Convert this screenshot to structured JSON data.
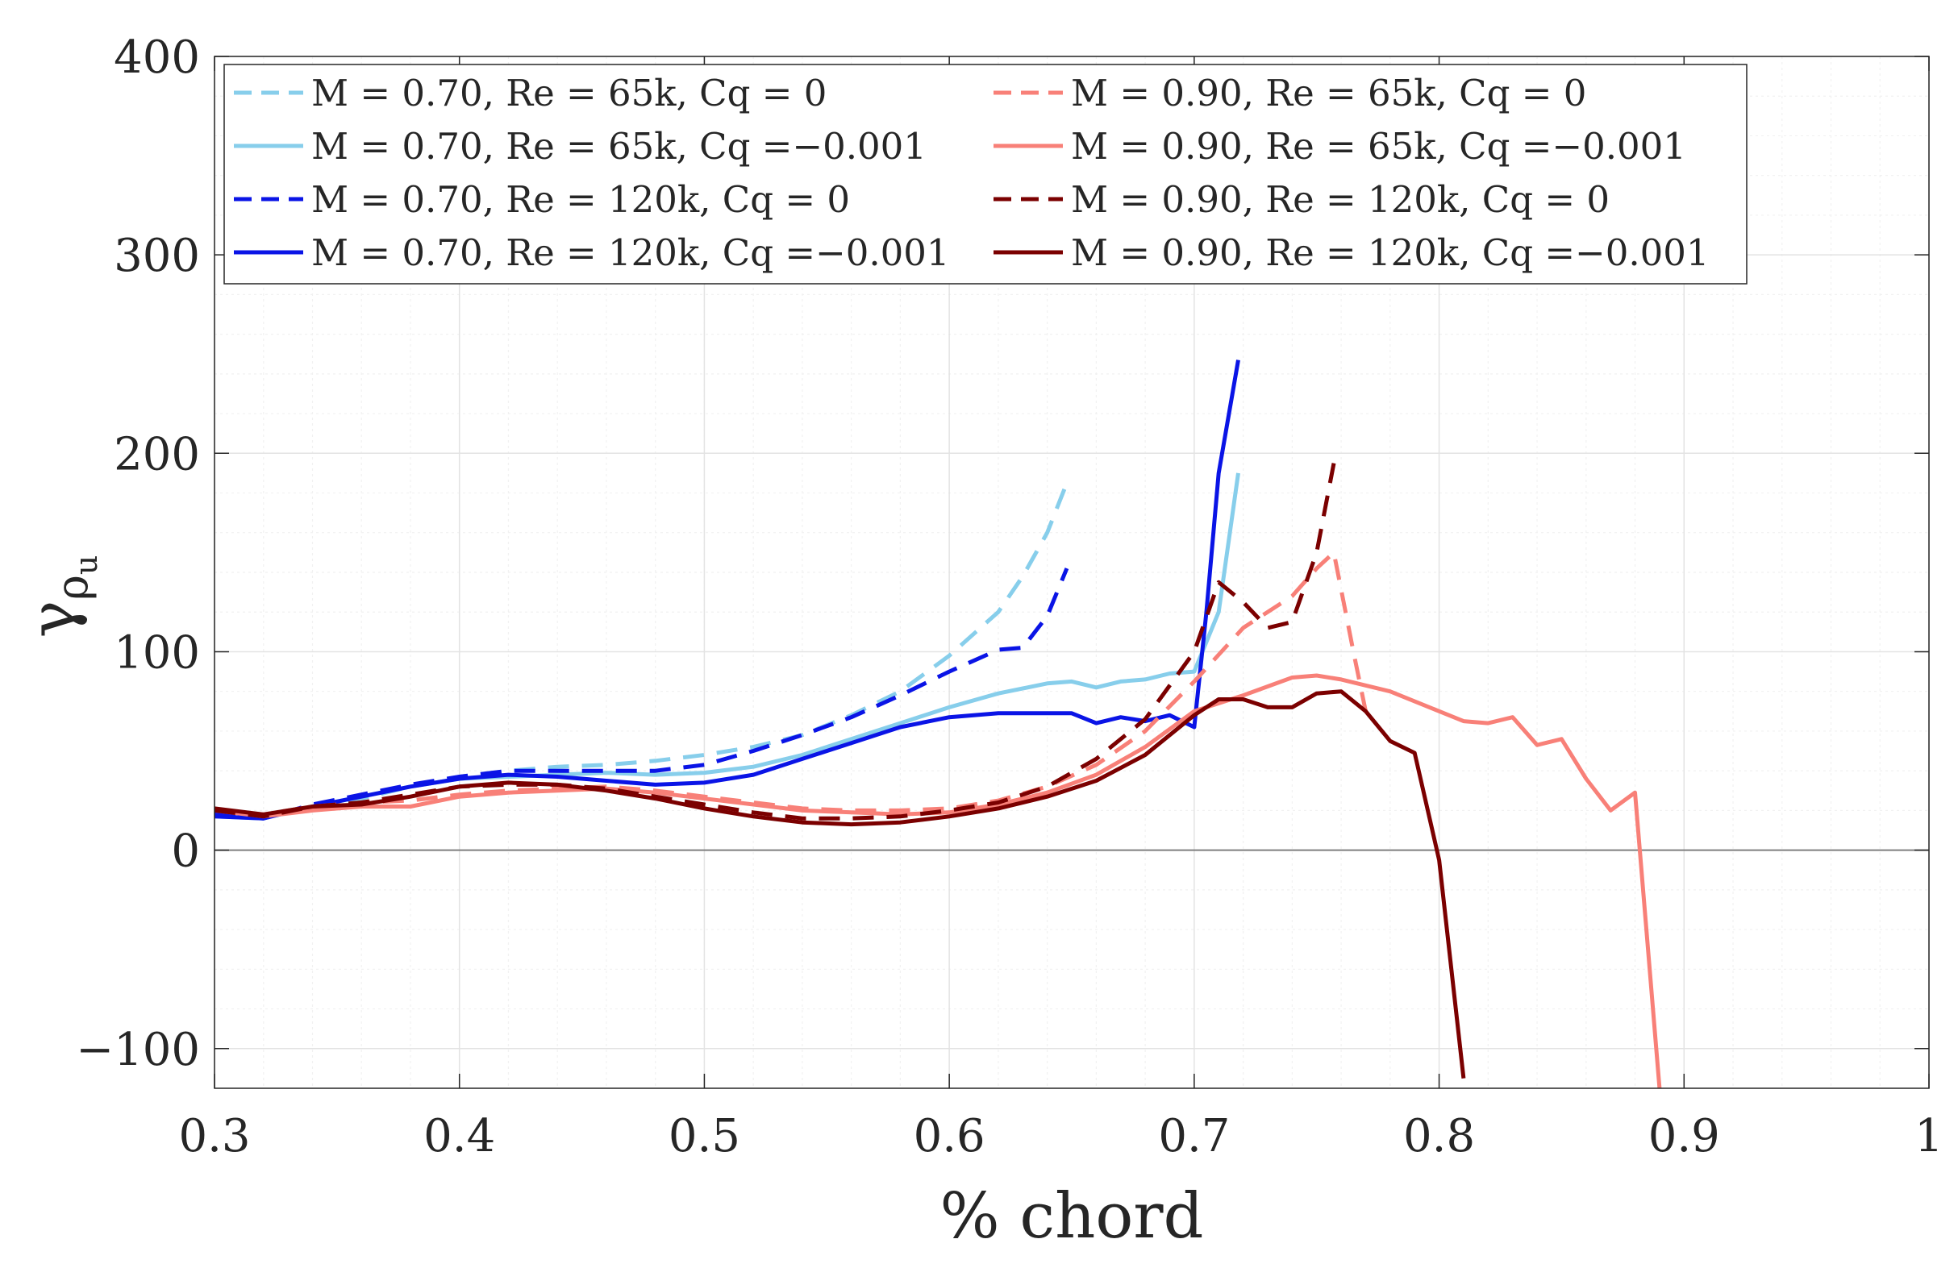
{
  "chart_data": {
    "type": "line",
    "title": "",
    "xlabel": "% chord",
    "ylabel_main": "γ",
    "ylabel_sub1": "ρ",
    "ylabel_sub2": "u",
    "xlim": [
      0.3,
      1.0
    ],
    "ylim": [
      -120,
      400
    ],
    "xticks": [
      0.3,
      0.4,
      0.5,
      0.6,
      0.7,
      0.8,
      0.9,
      1.0
    ],
    "xtick_labels": [
      "0.3",
      "0.4",
      "0.5",
      "0.6",
      "0.7",
      "0.8",
      "0.9",
      "1"
    ],
    "yticks": [
      -100,
      0,
      100,
      200,
      300,
      400
    ],
    "ytick_labels": [
      "−100",
      "0",
      "100",
      "200",
      "300",
      "400"
    ],
    "grid": true,
    "minor_grid": true,
    "legend_position": "top-left",
    "legend_columns": 2,
    "series": [
      {
        "name": "M = 0.70, Re = 65k, Cq = 0",
        "color": "#87ceeb",
        "dash": "dashed",
        "x": [
          0.3,
          0.32,
          0.34,
          0.36,
          0.38,
          0.4,
          0.42,
          0.44,
          0.46,
          0.48,
          0.5,
          0.52,
          0.54,
          0.56,
          0.58,
          0.6,
          0.62,
          0.63,
          0.64,
          0.648
        ],
        "y": [
          18,
          16,
          22,
          26,
          32,
          37,
          40,
          42,
          43,
          45,
          48,
          52,
          58,
          68,
          80,
          98,
          120,
          138,
          160,
          185
        ]
      },
      {
        "name": "M = 0.70, Re = 65k, Cq =−0.001",
        "color": "#87ceeb",
        "dash": "solid",
        "x": [
          0.3,
          0.32,
          0.34,
          0.36,
          0.38,
          0.4,
          0.42,
          0.44,
          0.46,
          0.48,
          0.5,
          0.52,
          0.54,
          0.56,
          0.58,
          0.6,
          0.62,
          0.64,
          0.65,
          0.66,
          0.67,
          0.68,
          0.69,
          0.7,
          0.71,
          0.718
        ],
        "y": [
          17,
          16,
          22,
          27,
          32,
          36,
          37,
          38,
          39,
          38,
          39,
          42,
          48,
          56,
          64,
          72,
          79,
          84,
          85,
          82,
          85,
          86,
          89,
          90,
          120,
          190
        ]
      },
      {
        "name": "M = 0.70, Re = 120k, Cq = 0",
        "color": "#0a14e6",
        "dash": "dashed",
        "x": [
          0.3,
          0.32,
          0.34,
          0.36,
          0.38,
          0.4,
          0.42,
          0.44,
          0.46,
          0.48,
          0.5,
          0.52,
          0.54,
          0.56,
          0.58,
          0.6,
          0.62,
          0.63,
          0.64,
          0.648
        ],
        "y": [
          18,
          16,
          23,
          28,
          33,
          37,
          40,
          40,
          40,
          40,
          43,
          50,
          58,
          67,
          78,
          90,
          101,
          102,
          118,
          142
        ]
      },
      {
        "name": "M = 0.70, Re = 120k, Cq =−0.001",
        "color": "#0a14e6",
        "dash": "solid",
        "x": [
          0.3,
          0.32,
          0.34,
          0.36,
          0.38,
          0.4,
          0.42,
          0.44,
          0.46,
          0.48,
          0.5,
          0.52,
          0.54,
          0.56,
          0.58,
          0.6,
          0.62,
          0.64,
          0.65,
          0.66,
          0.67,
          0.68,
          0.69,
          0.7,
          0.705,
          0.71,
          0.718
        ],
        "y": [
          17,
          16,
          22,
          27,
          32,
          36,
          38,
          37,
          35,
          33,
          34,
          38,
          46,
          54,
          62,
          67,
          69,
          69,
          69,
          64,
          67,
          65,
          68,
          62,
          120,
          190,
          247
        ]
      },
      {
        "name": "M = 0.90, Re = 65k, Cq = 0",
        "color": "#f88078",
        "dash": "dashed",
        "x": [
          0.3,
          0.32,
          0.34,
          0.36,
          0.38,
          0.4,
          0.42,
          0.44,
          0.46,
          0.48,
          0.5,
          0.52,
          0.54,
          0.56,
          0.58,
          0.6,
          0.62,
          0.64,
          0.66,
          0.68,
          0.7,
          0.72,
          0.74,
          0.75,
          0.757,
          0.765,
          0.77
        ],
        "y": [
          20,
          18,
          22,
          24,
          25,
          28,
          30,
          31,
          32,
          30,
          27,
          24,
          21,
          20,
          20,
          21,
          25,
          32,
          43,
          60,
          85,
          112,
          128,
          142,
          150,
          100,
          70
        ]
      },
      {
        "name": "M = 0.90, Re = 65k, Cq =−0.001",
        "color": "#f88078",
        "dash": "solid",
        "x": [
          0.3,
          0.32,
          0.34,
          0.36,
          0.38,
          0.4,
          0.42,
          0.44,
          0.46,
          0.48,
          0.5,
          0.52,
          0.54,
          0.56,
          0.58,
          0.6,
          0.62,
          0.64,
          0.66,
          0.68,
          0.7,
          0.72,
          0.74,
          0.75,
          0.76,
          0.78,
          0.8,
          0.81,
          0.82,
          0.83,
          0.84,
          0.85,
          0.86,
          0.87,
          0.88,
          0.89
        ],
        "y": [
          20,
          17,
          20,
          22,
          22,
          27,
          29,
          30,
          31,
          29,
          26,
          23,
          20,
          19,
          18,
          19,
          23,
          29,
          38,
          52,
          70,
          78,
          87,
          88,
          86,
          80,
          70,
          65,
          64,
          67,
          53,
          56,
          36,
          20,
          29,
          -120
        ]
      },
      {
        "name": "M = 0.90, Re = 120k, Cq = 0",
        "color": "#7b0000",
        "dash": "dashed",
        "x": [
          0.3,
          0.32,
          0.34,
          0.36,
          0.38,
          0.4,
          0.42,
          0.44,
          0.46,
          0.48,
          0.5,
          0.52,
          0.54,
          0.56,
          0.58,
          0.6,
          0.62,
          0.64,
          0.66,
          0.68,
          0.7,
          0.71,
          0.72,
          0.73,
          0.74,
          0.75,
          0.757
        ],
        "y": [
          20,
          17,
          22,
          24,
          28,
          32,
          33,
          33,
          31,
          27,
          23,
          19,
          16,
          16,
          17,
          20,
          24,
          32,
          46,
          66,
          100,
          135,
          125,
          112,
          115,
          150,
          195
        ]
      },
      {
        "name": "M = 0.90, Re = 120k, Cq =−0.001",
        "color": "#7b0000",
        "dash": "solid",
        "x": [
          0.3,
          0.32,
          0.34,
          0.36,
          0.38,
          0.4,
          0.42,
          0.44,
          0.46,
          0.48,
          0.5,
          0.52,
          0.54,
          0.56,
          0.58,
          0.6,
          0.62,
          0.64,
          0.66,
          0.68,
          0.7,
          0.71,
          0.72,
          0.73,
          0.74,
          0.75,
          0.76,
          0.77,
          0.78,
          0.79,
          0.8,
          0.81
        ],
        "y": [
          21,
          18,
          22,
          23,
          27,
          32,
          34,
          33,
          30,
          26,
          21,
          17,
          14,
          13,
          14,
          17,
          21,
          27,
          35,
          48,
          68,
          76,
          76,
          72,
          72,
          79,
          80,
          70,
          55,
          49,
          -5,
          -115
        ]
      }
    ]
  }
}
